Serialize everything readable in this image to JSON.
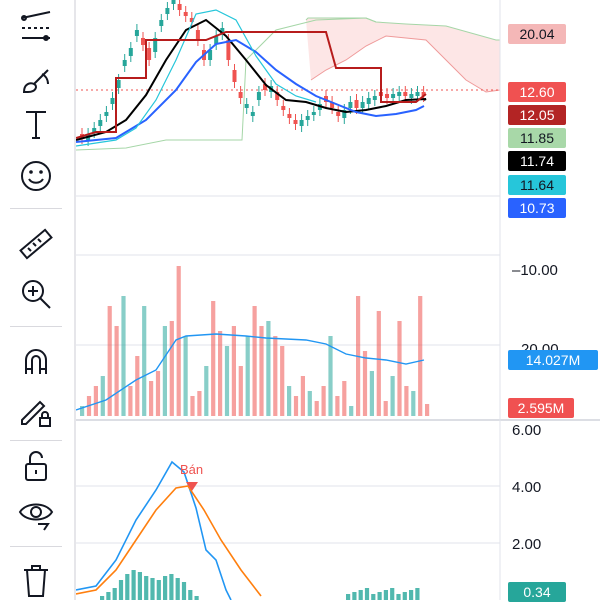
{
  "toolbar": {
    "tools": [
      {
        "name": "trendline-tool-icon"
      },
      {
        "name": "brush-tool-icon"
      },
      {
        "name": "text-tool-icon",
        "glyph": "T"
      },
      {
        "name": "emoji-tool-icon"
      },
      {
        "name": "ruler-tool-icon"
      },
      {
        "name": "zoom-in-tool-icon"
      },
      {
        "name": "magnet-tool-icon"
      },
      {
        "name": "lock-pencil-tool-icon"
      },
      {
        "name": "unlock-tool-icon"
      },
      {
        "name": "eye-tool-icon"
      },
      {
        "name": "trash-tool-icon"
      }
    ]
  },
  "price_scale": {
    "tags": [
      {
        "label": "20.04",
        "bg": "#f4b7b7",
        "fg": "#131722"
      },
      {
        "label": "12.60",
        "bg": "#f05151",
        "fg": "#ffffff"
      },
      {
        "label": "12.05",
        "bg": "#b32424",
        "fg": "#ffffff"
      },
      {
        "label": "11.85",
        "bg": "#a8d8a8",
        "fg": "#131722"
      },
      {
        "label": "11.74",
        "bg": "#000000",
        "fg": "#ffffff"
      },
      {
        "label": "11.64",
        "bg": "#26c6da",
        "fg": "#131722"
      },
      {
        "label": "10.73",
        "bg": "#2962ff",
        "fg": "#ffffff"
      }
    ]
  },
  "volume_pane": {
    "axis_top": "–10.00",
    "axis_mid": "20.00",
    "vol_ma_label": "14.027M",
    "vol_label": "2.595M"
  },
  "macd_pane": {
    "axis": [
      "6.00",
      "4.00",
      "2.00"
    ],
    "signal_text": "Bán",
    "hist_label": "0.34"
  },
  "colors": {
    "up": "#26a69a",
    "down": "#ef5350",
    "ma_black": "#000000",
    "ma_blue": "#2962ff",
    "ma_cyan": "#26c6da",
    "ma_darkred": "#b71c1c",
    "cloud": "#fde0e0",
    "macd_line": "#2196f3",
    "signal_line": "#ff7f0e"
  }
}
